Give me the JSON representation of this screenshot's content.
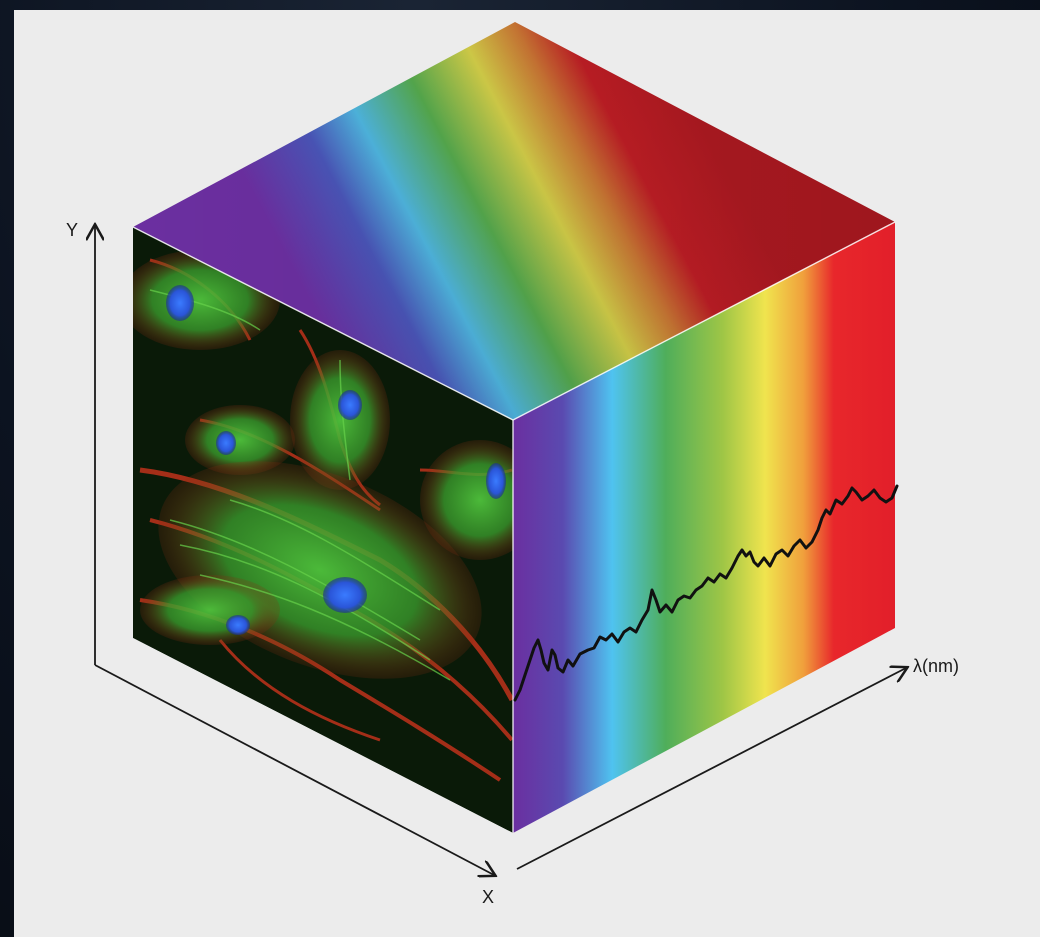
{
  "axes": {
    "y_label": "Y",
    "x_label": "X",
    "lambda_label": "λ(nm)"
  },
  "spectrum_colors": [
    "#6b2fa0",
    "#4a4fb8",
    "#4fc3f0",
    "#52b04a",
    "#e8e24a",
    "#e8272b"
  ],
  "cube_faces": {
    "front": "fluorescence-cell-image",
    "side": "spectral-bands",
    "top": "spectral-gradient"
  }
}
